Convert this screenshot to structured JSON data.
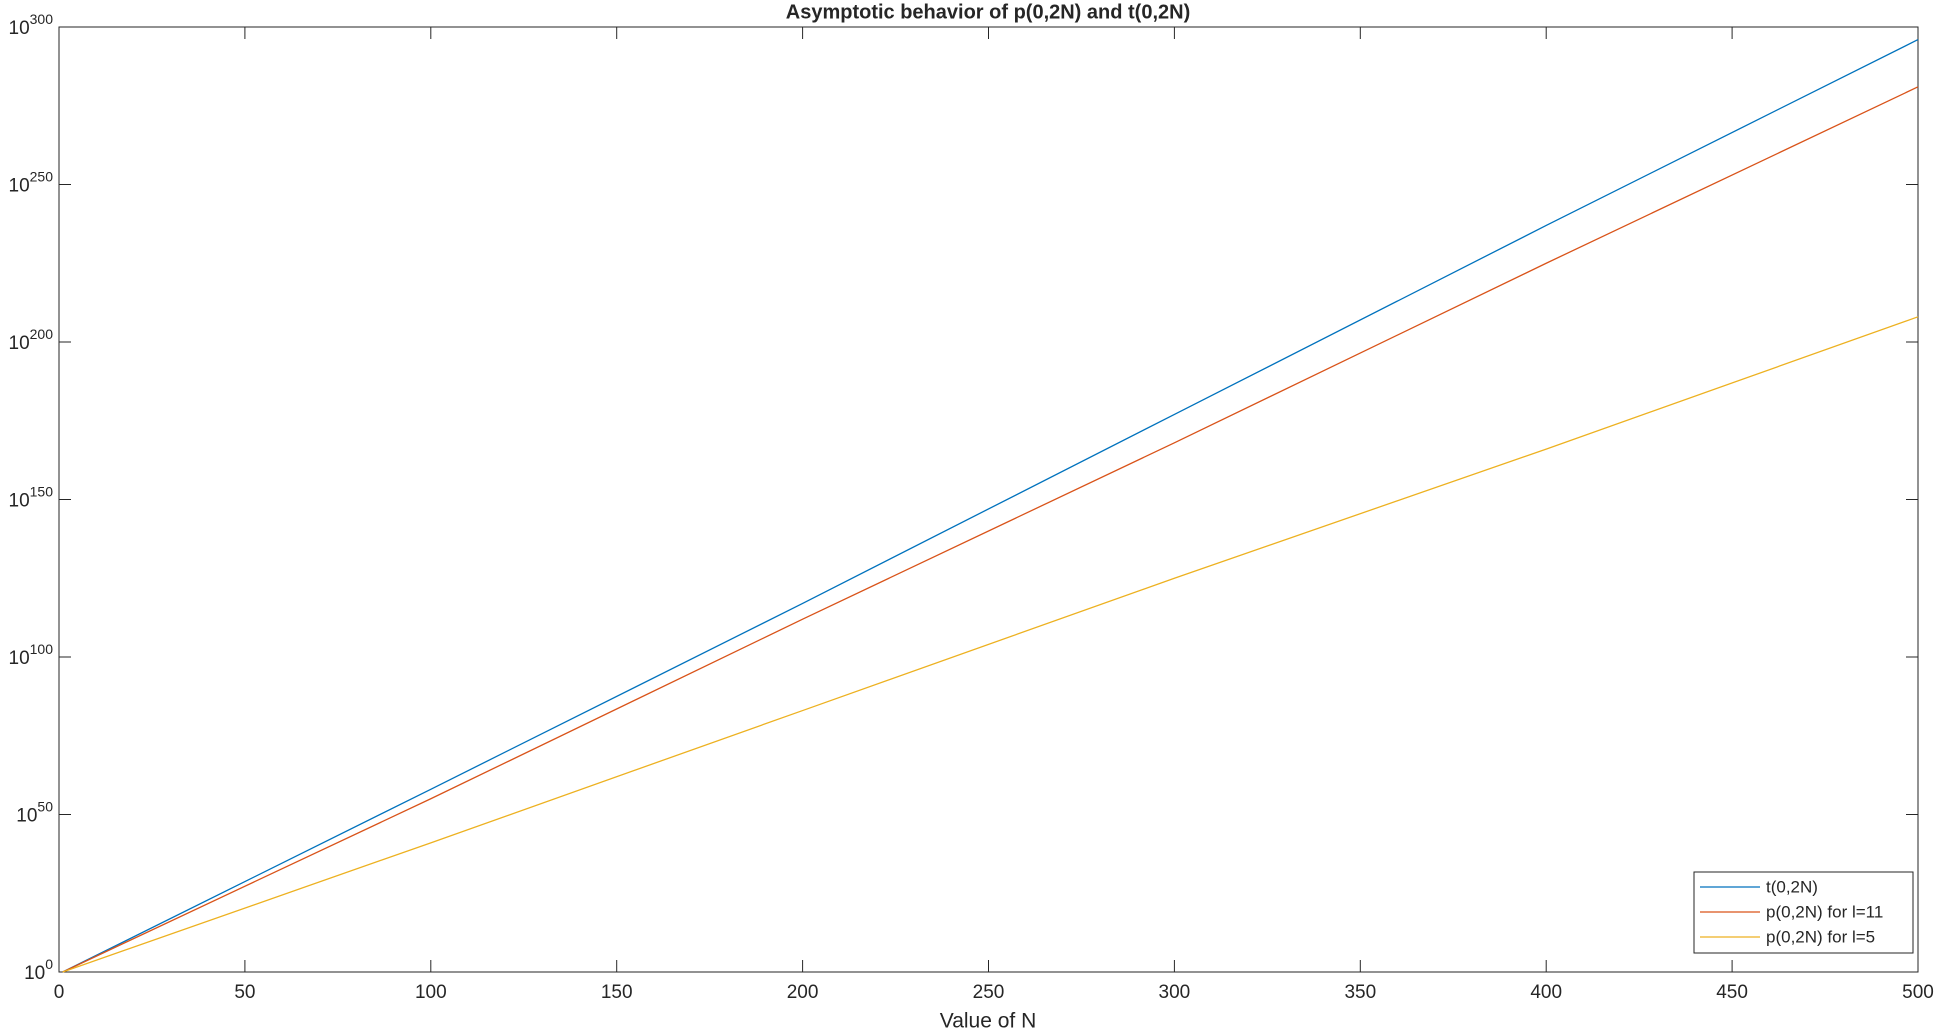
{
  "chart_data": {
    "type": "line",
    "title": "Asymptotic behavior of p(0,2N) and t(0,2N)",
    "xlabel": "Value of N",
    "x": [
      1,
      100,
      200,
      300,
      400,
      500
    ],
    "series": [
      {
        "name": "t(0,2N)",
        "color": "#0072bd",
        "values": [
          1,
          1e+58,
          1e+117,
          1e+177,
          1e+237,
          1e+296
        ]
      },
      {
        "name": "p(0,2N) for l=11",
        "color": "#d95319",
        "values": [
          1,
          1e+55,
          1e+112,
          1e+168,
          1e+225,
          1e+281
        ]
      },
      {
        "name": "p(0,2N) for l=5",
        "color": "#edb120",
        "values": [
          1,
          1e+41,
          1e+83,
          1e+125,
          1e+166,
          1e+208
        ]
      }
    ],
    "xlim": [
      0,
      500
    ],
    "xticks": [
      0,
      50,
      100,
      150,
      200,
      250,
      300,
      350,
      400,
      450,
      500
    ],
    "ylim": [
      1,
      1e+300
    ],
    "yscale": "log",
    "yticks": [
      {
        "value": 1,
        "label": "10^0"
      },
      {
        "value": 1e+50,
        "label": "10^50"
      },
      {
        "value": 1e+100,
        "label": "10^100"
      },
      {
        "value": 1e+150,
        "label": "10^150"
      },
      {
        "value": 1e+200,
        "label": "10^200"
      },
      {
        "value": 1e+250,
        "label": "10^250"
      },
      {
        "value": 1e+300,
        "label": "10^300"
      }
    ],
    "grid": false,
    "legend": "lower right"
  }
}
